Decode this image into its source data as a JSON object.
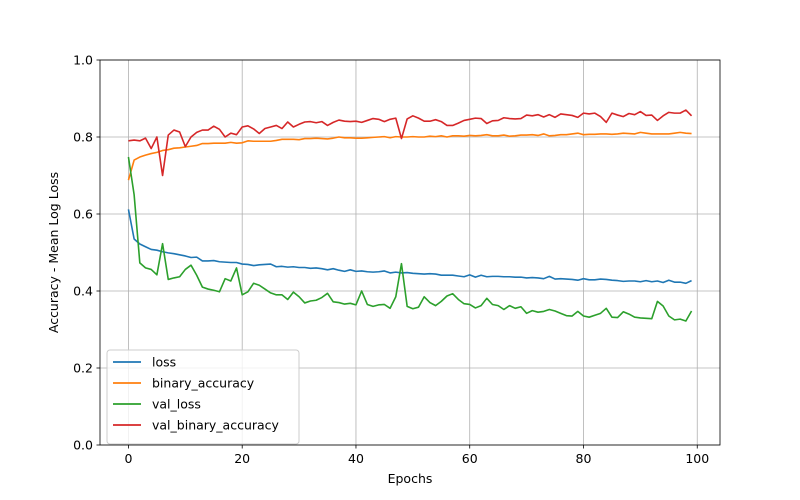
{
  "chart_data": {
    "type": "line",
    "xlabel": "Epochs",
    "ylabel": "Accuracy - Mean Log Loss",
    "xlim": [
      -5,
      104
    ],
    "ylim": [
      0,
      1.0
    ],
    "xticks": [
      0,
      20,
      40,
      60,
      80,
      100
    ],
    "xtick_labels": [
      "0",
      "20",
      "40",
      "60",
      "80",
      "100"
    ],
    "yticks": [
      0.0,
      0.2,
      0.4,
      0.6,
      0.8,
      1.0
    ],
    "ytick_labels": [
      "0.0",
      "0.2",
      "0.4",
      "0.6",
      "0.8",
      "1.0"
    ],
    "grid": true,
    "legend_position": "lower-left",
    "x": [
      0,
      1,
      2,
      3,
      4,
      5,
      6,
      7,
      8,
      9,
      10,
      11,
      12,
      13,
      14,
      15,
      16,
      17,
      18,
      19,
      20,
      21,
      22,
      23,
      24,
      25,
      26,
      27,
      28,
      29,
      30,
      31,
      32,
      33,
      34,
      35,
      36,
      37,
      38,
      39,
      40,
      41,
      42,
      43,
      44,
      45,
      46,
      47,
      48,
      49,
      50,
      51,
      52,
      53,
      54,
      55,
      56,
      57,
      58,
      59,
      60,
      61,
      62,
      63,
      64,
      65,
      66,
      67,
      68,
      69,
      70,
      71,
      72,
      73,
      74,
      75,
      76,
      77,
      78,
      79,
      80,
      81,
      82,
      83,
      84,
      85,
      86,
      87,
      88,
      89,
      90,
      91,
      92,
      93,
      94,
      95,
      96,
      97,
      98,
      99
    ],
    "series": [
      {
        "name": "loss",
        "color": "#1f77b4",
        "values": [
          0.612,
          0.535,
          0.522,
          0.515,
          0.508,
          0.506,
          0.502,
          0.499,
          0.497,
          0.494,
          0.491,
          0.487,
          0.488,
          0.478,
          0.478,
          0.479,
          0.476,
          0.475,
          0.474,
          0.474,
          0.47,
          0.469,
          0.466,
          0.468,
          0.469,
          0.47,
          0.463,
          0.464,
          0.462,
          0.463,
          0.461,
          0.461,
          0.459,
          0.46,
          0.458,
          0.455,
          0.458,
          0.454,
          0.451,
          0.455,
          0.451,
          0.452,
          0.45,
          0.449,
          0.45,
          0.452,
          0.447,
          0.449,
          0.447,
          0.448,
          0.446,
          0.445,
          0.444,
          0.445,
          0.444,
          0.441,
          0.441,
          0.441,
          0.439,
          0.437,
          0.442,
          0.436,
          0.441,
          0.437,
          0.438,
          0.438,
          0.437,
          0.437,
          0.436,
          0.436,
          0.434,
          0.435,
          0.434,
          0.432,
          0.438,
          0.431,
          0.432,
          0.431,
          0.43,
          0.428,
          0.432,
          0.429,
          0.429,
          0.431,
          0.43,
          0.428,
          0.427,
          0.425,
          0.426,
          0.426,
          0.424,
          0.427,
          0.424,
          0.426,
          0.422,
          0.428,
          0.423,
          0.423,
          0.42,
          0.427
        ]
      },
      {
        "name": "binary_accuracy",
        "color": "#ff7f0e",
        "values": [
          0.688,
          0.74,
          0.748,
          0.753,
          0.757,
          0.76,
          0.765,
          0.767,
          0.771,
          0.772,
          0.774,
          0.776,
          0.778,
          0.783,
          0.783,
          0.784,
          0.784,
          0.784,
          0.786,
          0.784,
          0.785,
          0.79,
          0.789,
          0.789,
          0.789,
          0.789,
          0.791,
          0.794,
          0.794,
          0.794,
          0.793,
          0.796,
          0.796,
          0.797,
          0.796,
          0.795,
          0.797,
          0.8,
          0.798,
          0.798,
          0.797,
          0.797,
          0.798,
          0.799,
          0.8,
          0.801,
          0.798,
          0.801,
          0.8,
          0.8,
          0.801,
          0.8,
          0.8,
          0.802,
          0.801,
          0.803,
          0.8,
          0.803,
          0.803,
          0.802,
          0.804,
          0.803,
          0.804,
          0.806,
          0.803,
          0.803,
          0.805,
          0.802,
          0.803,
          0.805,
          0.805,
          0.806,
          0.804,
          0.808,
          0.803,
          0.804,
          0.806,
          0.806,
          0.808,
          0.81,
          0.806,
          0.807,
          0.807,
          0.808,
          0.808,
          0.807,
          0.808,
          0.81,
          0.809,
          0.808,
          0.812,
          0.81,
          0.808,
          0.808,
          0.808,
          0.808,
          0.81,
          0.812,
          0.81,
          0.809
        ]
      },
      {
        "name": "val_loss",
        "color": "#2ca02c",
        "values": [
          0.748,
          0.65,
          0.473,
          0.46,
          0.456,
          0.442,
          0.523,
          0.43,
          0.434,
          0.437,
          0.456,
          0.467,
          0.441,
          0.41,
          0.405,
          0.402,
          0.398,
          0.432,
          0.426,
          0.46,
          0.39,
          0.398,
          0.42,
          0.415,
          0.405,
          0.395,
          0.39,
          0.39,
          0.378,
          0.397,
          0.385,
          0.369,
          0.374,
          0.376,
          0.383,
          0.394,
          0.372,
          0.37,
          0.366,
          0.368,
          0.364,
          0.4,
          0.365,
          0.36,
          0.364,
          0.365,
          0.355,
          0.385,
          0.471,
          0.36,
          0.354,
          0.358,
          0.385,
          0.37,
          0.362,
          0.373,
          0.387,
          0.393,
          0.378,
          0.367,
          0.365,
          0.356,
          0.362,
          0.381,
          0.365,
          0.362,
          0.352,
          0.362,
          0.355,
          0.359,
          0.342,
          0.349,
          0.345,
          0.347,
          0.352,
          0.348,
          0.342,
          0.336,
          0.335,
          0.347,
          0.335,
          0.332,
          0.337,
          0.342,
          0.355,
          0.332,
          0.331,
          0.346,
          0.34,
          0.332,
          0.33,
          0.329,
          0.328,
          0.373,
          0.361,
          0.335,
          0.325,
          0.327,
          0.322,
          0.348
        ]
      },
      {
        "name": "val_binary_accuracy",
        "color": "#d62728",
        "values": [
          0.79,
          0.792,
          0.79,
          0.797,
          0.77,
          0.8,
          0.7,
          0.805,
          0.818,
          0.813,
          0.775,
          0.8,
          0.812,
          0.818,
          0.818,
          0.828,
          0.82,
          0.8,
          0.81,
          0.806,
          0.826,
          0.829,
          0.821,
          0.809,
          0.822,
          0.826,
          0.83,
          0.822,
          0.839,
          0.826,
          0.833,
          0.839,
          0.84,
          0.837,
          0.84,
          0.83,
          0.838,
          0.844,
          0.841,
          0.84,
          0.841,
          0.838,
          0.843,
          0.848,
          0.846,
          0.84,
          0.846,
          0.849,
          0.796,
          0.847,
          0.855,
          0.849,
          0.841,
          0.841,
          0.845,
          0.84,
          0.83,
          0.83,
          0.836,
          0.843,
          0.846,
          0.849,
          0.848,
          0.835,
          0.842,
          0.843,
          0.85,
          0.848,
          0.847,
          0.848,
          0.857,
          0.855,
          0.858,
          0.852,
          0.858,
          0.851,
          0.86,
          0.858,
          0.856,
          0.851,
          0.862,
          0.86,
          0.862,
          0.853,
          0.838,
          0.862,
          0.857,
          0.853,
          0.861,
          0.858,
          0.866,
          0.856,
          0.857,
          0.843,
          0.855,
          0.864,
          0.862,
          0.862,
          0.87,
          0.855
        ]
      }
    ]
  }
}
